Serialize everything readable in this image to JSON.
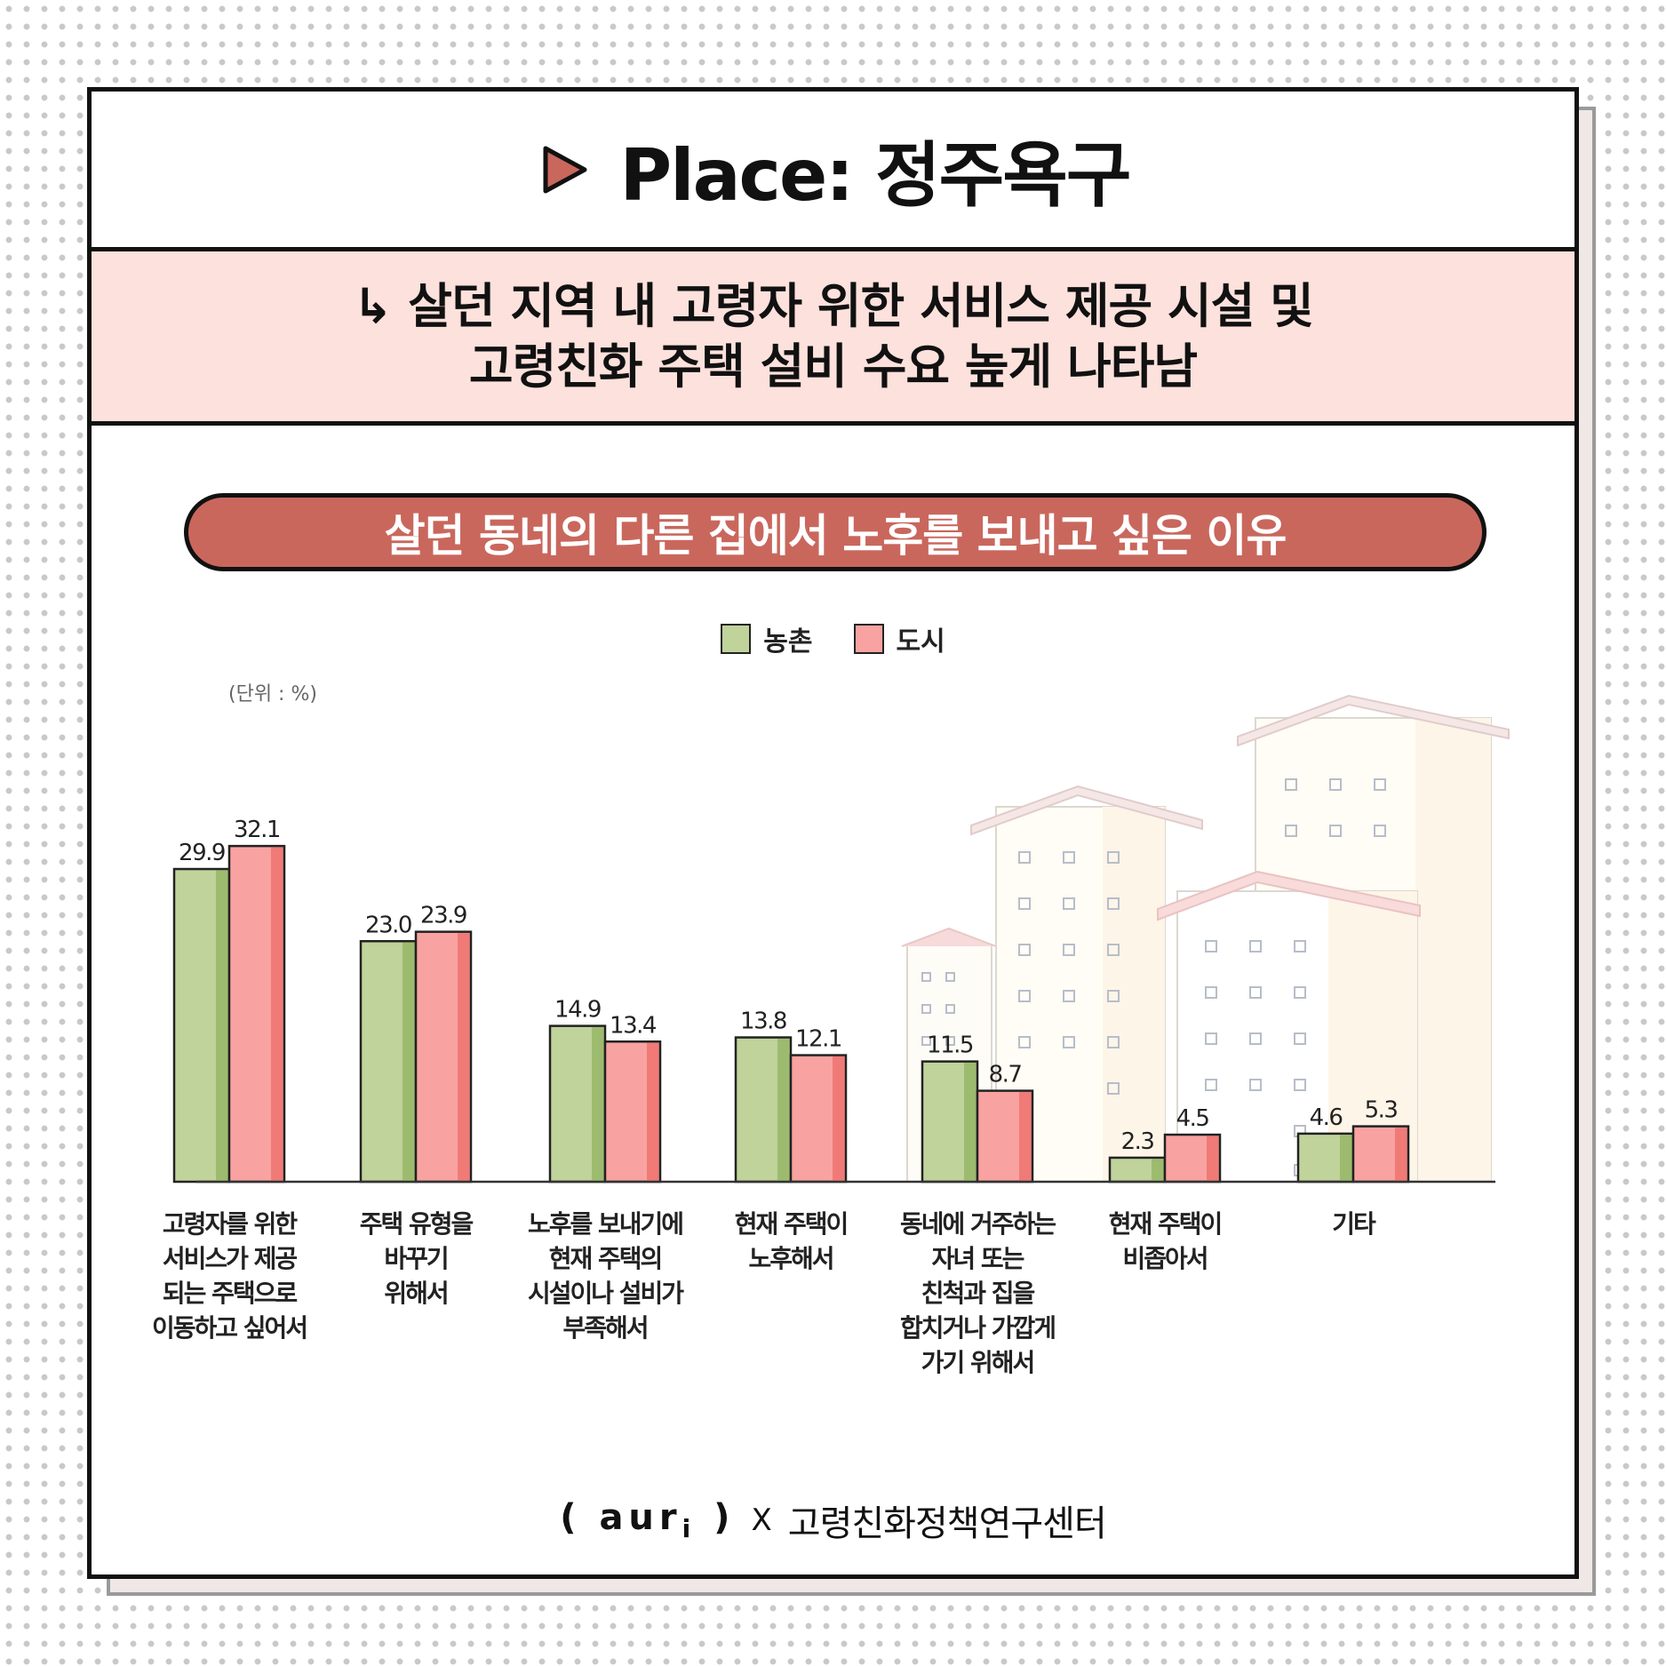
{
  "title": "Place: 정주욕구",
  "subtitle": {
    "line1": "↳ 살던 지역 내 고령자 위한 서비스 제공 시설 및",
    "line2": "고령친화 주택 설비 수요 높게 나타남"
  },
  "colors": {
    "accent": "#c9675d",
    "band": "#fde1dc",
    "rural": "#bfd39b",
    "rural_shade": "#9dbb6e",
    "urban": "#f8a3a1",
    "urban_shade": "#f07a76"
  },
  "icons": {
    "title": "play-triangle-icon"
  },
  "chart_data": {
    "type": "bar",
    "title": "살던 동네의 다른 집에서 노후를 보내고 싶은 이유",
    "unit_label": "(단위 : %)",
    "categories": [
      [
        "고령자를 위한",
        "서비스가 제공",
        "되는 주택으로",
        "이동하고 싶어서"
      ],
      [
        "주택 유형을",
        "바꾸기",
        "위해서"
      ],
      [
        "노후를 보내기에",
        "현재 주택의",
        "시설이나 설비가",
        "부족해서"
      ],
      [
        "현재 주택이",
        "노후해서"
      ],
      [
        "동네에 거주하는",
        "자녀 또는",
        "친척과 집을",
        "합치거나 가깝게",
        "가기 위해서"
      ],
      [
        "현재 주택이",
        "비좁아서"
      ],
      [
        "기타"
      ]
    ],
    "series": [
      {
        "name": "농촌",
        "values": [
          29.9,
          23.0,
          14.9,
          13.8,
          11.5,
          2.3,
          4.6
        ],
        "labels": [
          "29.9",
          "23.0",
          "14.9",
          "13.8",
          "11.5",
          "2.3",
          "4.6"
        ]
      },
      {
        "name": "도시",
        "values": [
          32.1,
          23.9,
          13.4,
          12.1,
          8.7,
          4.5,
          5.3
        ],
        "labels": [
          "32.1",
          "23.9",
          "13.4",
          "12.1",
          "8.7",
          "4.5",
          "5.3"
        ]
      }
    ],
    "ylim": [
      0,
      35
    ],
    "grid": false,
    "legend_position": "top-center"
  },
  "footer": {
    "logo": "aur",
    "logo_sub": "i",
    "separator": "X",
    "partner": "고령친화정책연구센터"
  }
}
